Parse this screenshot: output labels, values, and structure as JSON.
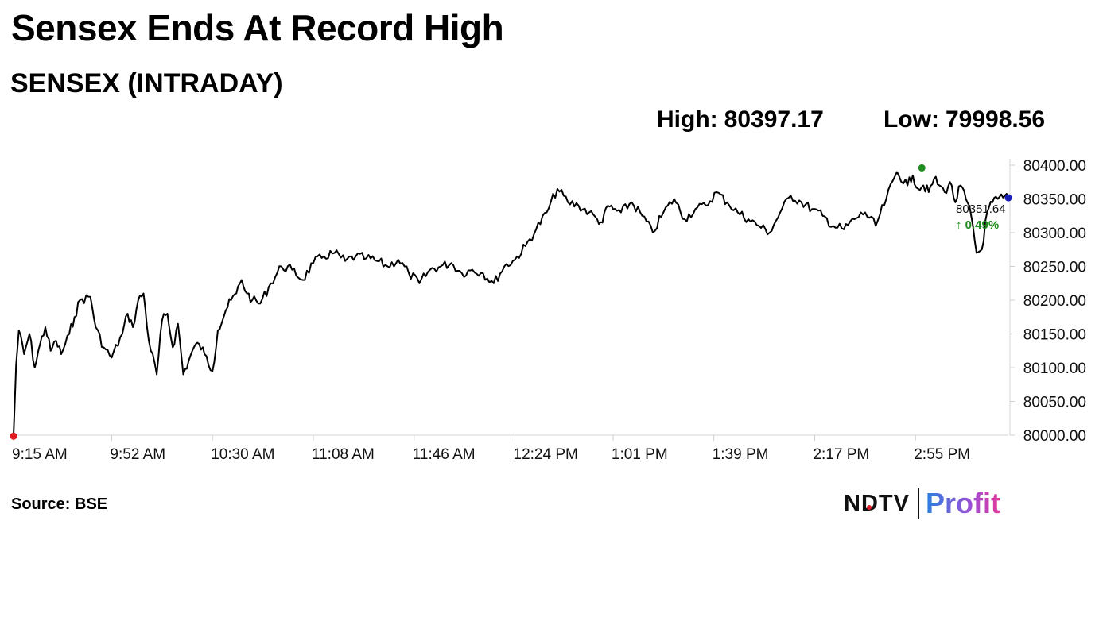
{
  "header": {
    "title": "Sensex Ends At Record High",
    "subtitle": "SENSEX (INTRADAY)"
  },
  "stats": {
    "high_label": "High:",
    "high_value": "80397.17",
    "low_label": "Low:",
    "low_value": "79998.56"
  },
  "footer": {
    "source": "Source: BSE"
  },
  "logo": {
    "brand": "NDTV",
    "product": "Profit"
  },
  "colors": {
    "line": "#000000",
    "low_marker": "#e0191f",
    "high_marker": "#1e8c1e",
    "last_marker": "#1a1fb8",
    "change_positive": "#1e8c1e"
  },
  "chart_data": {
    "type": "line",
    "title": "SENSEX (INTRADAY)",
    "xlabel": "",
    "ylabel": "",
    "x_ticks": [
      "9:15 AM",
      "9:52 AM",
      "10:30 AM",
      "11:08 AM",
      "11:46 AM",
      "12:24 PM",
      "1:01 PM",
      "1:39 PM",
      "2:17 PM",
      "2:55 PM"
    ],
    "y_ticks": [
      "80400.00",
      "80350.00",
      "80300.00",
      "80250.00",
      "80200.00",
      "80150.00",
      "80100.00",
      "80050.00",
      "80000.00"
    ],
    "ylim": [
      80000,
      80400
    ],
    "y_axis_position": "right",
    "grid": false,
    "last_value": "80351.64",
    "change": "0.49%",
    "change_arrow": "↑",
    "series": [
      {
        "x": [
          "9:15 AM",
          "9:16 AM",
          "9:17 AM",
          "9:19 AM",
          "9:21 AM",
          "9:23 AM",
          "9:25 AM",
          "9:27 AM",
          "9:29 AM",
          "9:31 AM",
          "9:33 AM",
          "9:36 AM",
          "9:38 AM",
          "9:40 AM",
          "9:44 AM",
          "9:46 AM",
          "9:49 AM",
          "9:52 AM",
          "9:56 AM",
          "9:58 AM",
          "10:00 AM",
          "10:02 AM",
          "10:04 AM",
          "10:06 AM",
          "10:09 AM",
          "10:11 AM",
          "10:13 AM",
          "10:15 AM",
          "10:17 AM",
          "10:19 AM",
          "10:21 AM",
          "10:23 AM",
          "10:25 AM",
          "10:27 AM",
          "10:30 AM",
          "10:32 AM",
          "10:35 AM",
          "10:37 AM",
          "10:39 AM",
          "10:41 AM",
          "10:43 AM",
          "10:45 AM",
          "10:48 AM",
          "10:52 AM",
          "10:56 AM",
          "11:00 AM",
          "11:04 AM",
          "11:08 AM",
          "11:12 AM",
          "11:16 AM",
          "11:20 AM",
          "11:24 AM",
          "11:28 AM",
          "11:32 AM",
          "11:36 AM",
          "11:40 AM",
          "11:44 AM",
          "11:48 AM",
          "11:52 AM",
          "11:56 AM",
          "12:00 PM",
          "12:04 PM",
          "12:08 PM",
          "12:12 PM",
          "12:16 PM",
          "12:20 PM",
          "12:24 PM",
          "12:28 PM",
          "12:32 PM",
          "12:36 PM",
          "12:40 PM",
          "12:44 PM",
          "12:48 PM",
          "12:52 PM",
          "12:55 PM",
          "12:57 PM",
          "12:59 PM",
          "1:01 PM",
          "1:04 PM",
          "1:08 PM",
          "1:12 PM",
          "1:16 PM",
          "1:20 PM",
          "1:24 PM",
          "1:28 PM",
          "1:32 PM",
          "1:36 PM",
          "1:40 PM",
          "1:44 PM",
          "1:48 PM",
          "1:52 PM",
          "1:56 PM",
          "2:00 PM",
          "2:04 PM",
          "2:08 PM",
          "2:12 PM",
          "2:16 PM",
          "2:20 PM",
          "2:24 PM",
          "2:28 PM",
          "2:32 PM",
          "2:36 PM",
          "2:40 PM",
          "2:44 PM",
          "2:48 PM",
          "2:52 PM",
          "2:54 PM",
          "2:56 PM",
          "2:58 PM",
          "3:00 PM",
          "3:02 PM",
          "3:04 PM",
          "3:06 PM",
          "3:08 PM",
          "3:10 PM",
          "3:12 PM",
          "3:14 PM",
          "3:16 PM",
          "3:18 PM",
          "3:20 PM",
          "3:22 PM",
          "3:24 PM",
          "3:26 PM",
          "3:28 PM",
          "3:30 PM"
        ],
        "values": [
          79999,
          80105,
          80155,
          80120,
          80150,
          80100,
          80135,
          80160,
          80125,
          80140,
          80120,
          80150,
          80175,
          80200,
          80205,
          80160,
          80130,
          80115,
          80150,
          80180,
          80160,
          80200,
          80210,
          80140,
          80090,
          80170,
          80180,
          80130,
          80165,
          80090,
          80110,
          80130,
          80135,
          80120,
          80095,
          80155,
          80185,
          80200,
          80210,
          80230,
          80210,
          80200,
          80195,
          80225,
          80250,
          80245,
          80230,
          80255,
          80265,
          80270,
          80258,
          80265,
          80262,
          80258,
          80250,
          80260,
          80240,
          80225,
          80245,
          80250,
          80255,
          80240,
          80245,
          80240,
          80225,
          80250,
          80260,
          80280,
          80305,
          80330,
          80365,
          80345,
          80340,
          80330,
          80320,
          80315,
          80340,
          80335,
          80330,
          80345,
          80325,
          80300,
          80330,
          80350,
          80320,
          80335,
          80340,
          80360,
          80345,
          80330,
          80320,
          80310,
          80300,
          80330,
          80355,
          80345,
          80335,
          80325,
          80310,
          80305,
          80320,
          80330,
          80310,
          80350,
          80390,
          80370,
          80385,
          80365,
          80370,
          80360,
          80380,
          80370,
          80360,
          80375,
          80345,
          80370,
          80350,
          80325,
          80270,
          80275,
          80330,
          80345,
          80350,
          80352,
          80352
        ],
        "x_positions_note": "",
        "x_index_max": 375
      }
    ],
    "markers": {
      "low": "79998.56",
      "high": "80397.17"
    }
  }
}
